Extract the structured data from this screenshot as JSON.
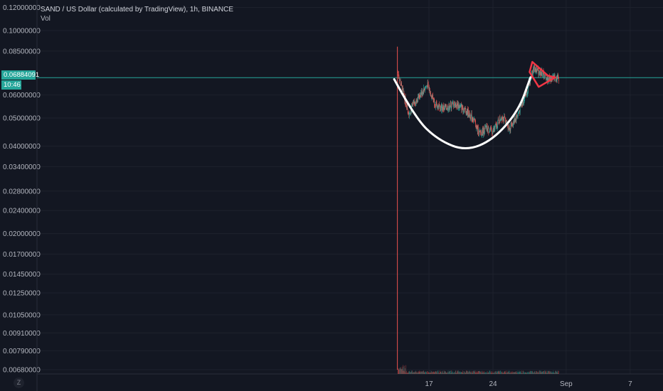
{
  "header": {
    "title": "SAND / US Dollar (calculated by TradingView), 1h, BINANCE",
    "indicator": "Vol"
  },
  "price_axis": {
    "current_price": "0.06884091",
    "countdown": "10:46",
    "zoom_glyph": "Z"
  },
  "colors": {
    "background": "#131722",
    "grid": "#1e222d",
    "up": "#26a69a",
    "down": "#ef5350",
    "annotation_curve": "#ffffff",
    "annotation_wedge": "#f23645",
    "price_line": "#26a69a"
  },
  "chart_data": {
    "type": "candlestick",
    "scale": "log",
    "y_ticks": [
      "0.12000000",
      "0.10000000",
      "0.08500000",
      "0.06000000",
      "0.05000000",
      "0.04000000",
      "0.03400000",
      "0.02800000",
      "0.02400000",
      "0.02000000",
      "0.01700000",
      "0.01450000",
      "0.01250000",
      "0.01050000",
      "0.00910000",
      "0.00790000",
      "0.00680000"
    ],
    "x_ticks": [
      "17",
      "24",
      "Sep",
      "7"
    ],
    "last_price": 0.06884091,
    "listing_spike": {
      "high": 0.088,
      "low": 0.0068
    },
    "segments": [
      {
        "day": 13.6,
        "price": 0.072
      },
      {
        "day": 14.0,
        "price": 0.064
      },
      {
        "day": 14.8,
        "price": 0.052
      },
      {
        "day": 15.8,
        "price": 0.059
      },
      {
        "day": 16.8,
        "price": 0.065
      },
      {
        "day": 17.8,
        "price": 0.055
      },
      {
        "day": 18.8,
        "price": 0.054
      },
      {
        "day": 19.8,
        "price": 0.056
      },
      {
        "day": 20.8,
        "price": 0.054
      },
      {
        "day": 21.8,
        "price": 0.05
      },
      {
        "day": 22.5,
        "price": 0.044
      },
      {
        "day": 23.2,
        "price": 0.046
      },
      {
        "day": 24.0,
        "price": 0.045
      },
      {
        "day": 25.0,
        "price": 0.051
      },
      {
        "day": 25.8,
        "price": 0.046
      },
      {
        "day": 26.8,
        "price": 0.052
      },
      {
        "day": 27.8,
        "price": 0.063
      },
      {
        "day": 28.4,
        "price": 0.074
      },
      {
        "day": 29.2,
        "price": 0.072
      },
      {
        "day": 30.0,
        "price": 0.068
      },
      {
        "day": 30.8,
        "price": 0.069
      },
      {
        "day": 31.2,
        "price": 0.0688
      }
    ],
    "annotations": {
      "cup_curve": [
        {
          "day": 13.2,
          "price": 0.068
        },
        {
          "day": 15.5,
          "price": 0.05
        },
        {
          "day": 18.0,
          "price": 0.042
        },
        {
          "day": 21.0,
          "price": 0.0385
        },
        {
          "day": 24.0,
          "price": 0.042
        },
        {
          "day": 26.8,
          "price": 0.053
        },
        {
          "day": 28.1,
          "price": 0.069
        }
      ],
      "pennant": [
        {
          "day": 28.3,
          "price": 0.078
        },
        {
          "day": 30.0,
          "price": 0.07
        },
        {
          "day": 30.8,
          "price": 0.069
        },
        {
          "day": 29.0,
          "price": 0.064
        },
        {
          "day": 28.0,
          "price": 0.072
        }
      ]
    }
  }
}
